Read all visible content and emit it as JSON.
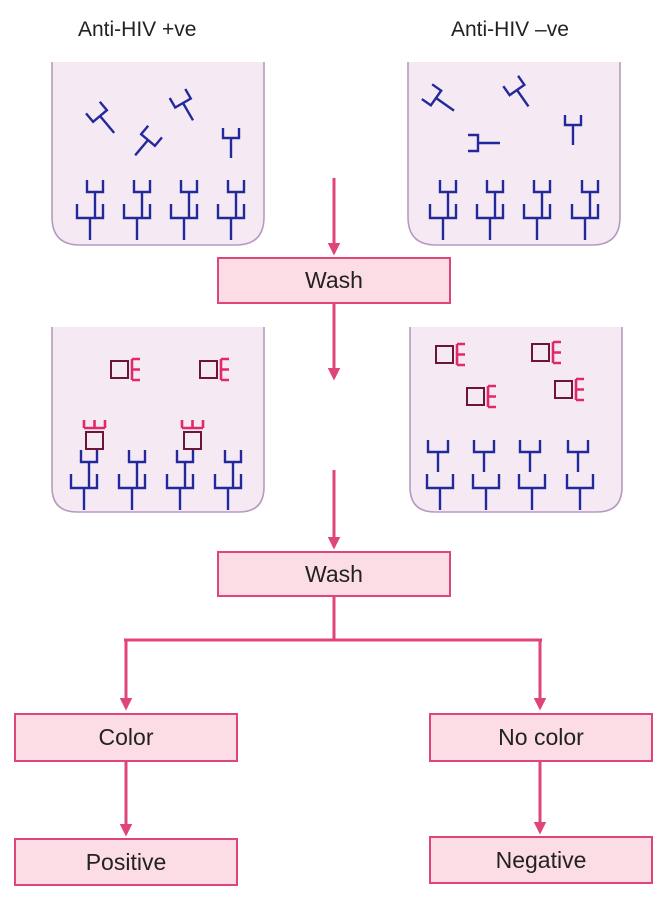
{
  "labels": {
    "positive_column": "Anti-HIV +ve",
    "negative_column": "Anti-HIV –ve"
  },
  "steps": {
    "wash_1": "Wash",
    "wash_2": "Wash",
    "color": "Color",
    "no_color": "No color",
    "positive": "Positive",
    "negative": "Negative"
  },
  "colors": {
    "antibody": "#23299b",
    "enzyme_conjugate": "#e0286a",
    "conjugate_square": "#6b1537",
    "arrow": "#e0457a",
    "box_fill": "#fcdde6",
    "well_fill": "#f5eaf3",
    "well_border": "#b69ac0"
  }
}
